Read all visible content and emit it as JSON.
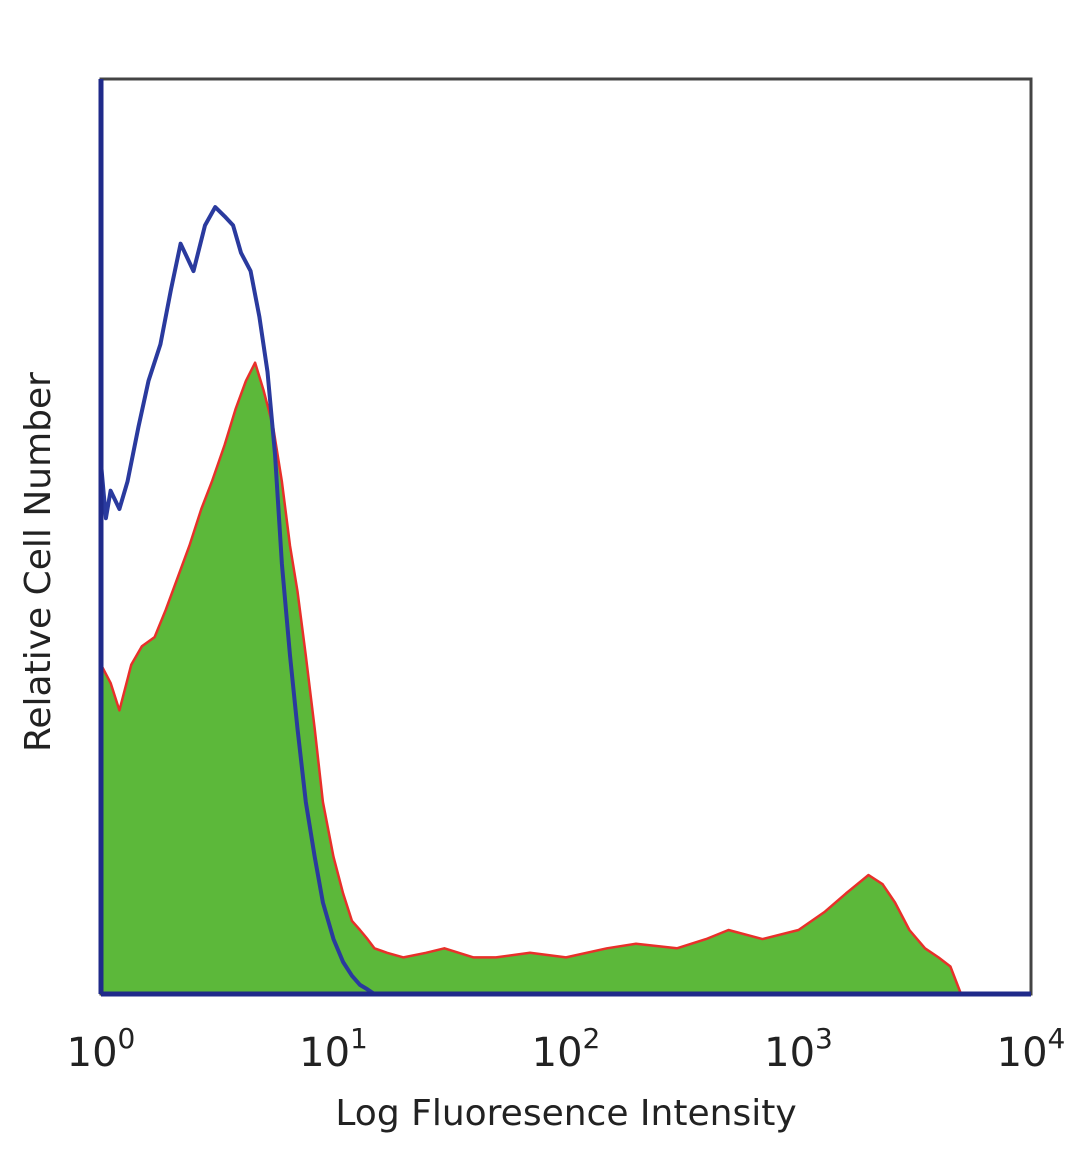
{
  "chart_data": {
    "type": "area",
    "xlabel": "Log Fluoresence Intensity",
    "ylabel": "Relative Cell Number",
    "x_scale": "log",
    "xlim": [
      1,
      10000
    ],
    "ylim": [
      0,
      1
    ],
    "x_ticks": [
      {
        "base": "10",
        "exp": "0",
        "value": 1
      },
      {
        "base": "10",
        "exp": "1",
        "value": 10
      },
      {
        "base": "10",
        "exp": "2",
        "value": 100
      },
      {
        "base": "10",
        "exp": "3",
        "value": 1000
      },
      {
        "base": "10",
        "exp": "4",
        "value": 10000
      }
    ],
    "grid": false,
    "legend": "none",
    "series": [
      {
        "style": "filled",
        "fill_color": "#5cb83a",
        "line_color": "#e8302a",
        "x": [
          1,
          1.1,
          1.2,
          1.35,
          1.5,
          1.7,
          1.9,
          2.1,
          2.4,
          2.7,
          3.0,
          3.4,
          3.8,
          4.2,
          4.6,
          5.0,
          5.5,
          6.0,
          6.5,
          7.0,
          7.6,
          8.3,
          9.0,
          10,
          11,
          12,
          13,
          14,
          15,
          17,
          20,
          25,
          30,
          40,
          50,
          70,
          100,
          150,
          200,
          300,
          400,
          500,
          700,
          1000,
          1300,
          1600,
          2000,
          2300,
          2600,
          3000,
          3500,
          4000,
          4500,
          5000
        ],
        "y": [
          0.36,
          0.34,
          0.31,
          0.36,
          0.38,
          0.39,
          0.42,
          0.45,
          0.49,
          0.53,
          0.56,
          0.6,
          0.64,
          0.67,
          0.69,
          0.66,
          0.62,
          0.56,
          0.49,
          0.44,
          0.37,
          0.29,
          0.21,
          0.15,
          0.11,
          0.08,
          0.07,
          0.06,
          0.05,
          0.045,
          0.04,
          0.045,
          0.05,
          0.04,
          0.04,
          0.045,
          0.04,
          0.05,
          0.055,
          0.05,
          0.06,
          0.07,
          0.06,
          0.07,
          0.09,
          0.11,
          0.13,
          0.12,
          0.1,
          0.07,
          0.05,
          0.04,
          0.03,
          0
        ]
      },
      {
        "style": "line",
        "line_color": "#2a3a9e",
        "x": [
          1,
          1.05,
          1.1,
          1.2,
          1.3,
          1.45,
          1.6,
          1.8,
          2.0,
          2.2,
          2.5,
          2.8,
          3.1,
          3.4,
          3.7,
          4.0,
          4.4,
          4.8,
          5.2,
          5.6,
          6.0,
          6.5,
          7.0,
          7.6,
          8.3,
          9.0,
          10,
          11,
          12,
          13,
          14,
          15
        ],
        "y": [
          0.58,
          0.52,
          0.55,
          0.53,
          0.56,
          0.62,
          0.67,
          0.71,
          0.77,
          0.82,
          0.79,
          0.84,
          0.86,
          0.85,
          0.84,
          0.81,
          0.79,
          0.74,
          0.68,
          0.59,
          0.47,
          0.37,
          0.29,
          0.21,
          0.15,
          0.1,
          0.06,
          0.035,
          0.02,
          0.01,
          0.005,
          0
        ]
      }
    ]
  }
}
